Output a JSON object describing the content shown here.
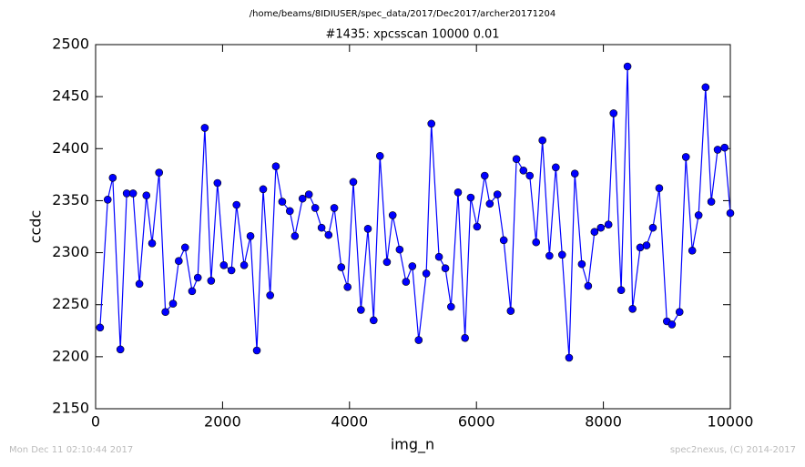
{
  "chart_data": {
    "type": "line",
    "suptitle": "/home/beams/8IDIUSER/spec_data/2017/Dec2017/archer20171204",
    "title": "#1435: xpcsscan 10000 0.01",
    "x_label": "img_n",
    "y_label": "ccdc",
    "xlim": [
      0,
      10000
    ],
    "xticks": [
      0,
      2000,
      4000,
      6000,
      8000,
      10000
    ],
    "ylim": [
      2150,
      2500
    ],
    "yticks": [
      2150,
      2200,
      2250,
      2300,
      2350,
      2400,
      2450,
      2500
    ],
    "grid": false,
    "x": [
      70,
      190,
      270,
      390,
      490,
      590,
      690,
      800,
      890,
      1000,
      1100,
      1220,
      1310,
      1410,
      1520,
      1610,
      1720,
      1820,
      1920,
      2020,
      2140,
      2220,
      2340,
      2440,
      2540,
      2640,
      2750,
      2840,
      2940,
      3060,
      3140,
      3260,
      3360,
      3460,
      3560,
      3670,
      3760,
      3870,
      3970,
      4060,
      4180,
      4290,
      4380,
      4480,
      4590,
      4680,
      4790,
      4890,
      4990,
      5090,
      5210,
      5290,
      5410,
      5510,
      5600,
      5710,
      5820,
      5910,
      6010,
      6130,
      6210,
      6330,
      6430,
      6540,
      6630,
      6740,
      6840,
      6940,
      7040,
      7150,
      7250,
      7350,
      7460,
      7550,
      7660,
      7760,
      7860,
      7960,
      8080,
      8160,
      8280,
      8380,
      8460,
      8580,
      8680,
      8780,
      8880,
      9000,
      9080,
      9200,
      9300,
      9400,
      9500,
      9610,
      9700,
      9800,
      9910,
      10000
    ],
    "series": [
      {
        "color": "#0000ff",
        "values": [
          2228,
          2351,
          2372,
          2207,
          2357,
          2357,
          2270,
          2355,
          2309,
          2377,
          2243,
          2251,
          2292,
          2305,
          2263,
          2276,
          2420,
          2273,
          2367,
          2288,
          2283,
          2346,
          2288,
          2316,
          2206,
          2361,
          2259,
          2383,
          2349,
          2340,
          2316,
          2352,
          2356,
          2343,
          2324,
          2317,
          2343,
          2286,
          2267,
          2368,
          2245,
          2323,
          2235,
          2393,
          2291,
          2336,
          2303,
          2272,
          2287,
          2216,
          2280,
          2424,
          2296,
          2285,
          2248,
          2358,
          2218,
          2353,
          2325,
          2374,
          2347,
          2356,
          2312,
          2244,
          2390,
          2379,
          2374,
          2310,
          2408,
          2297,
          2382,
          2298,
          2199,
          2376,
          2289,
          2268,
          2320,
          2324,
          2327,
          2434,
          2264,
          2479,
          2246,
          2305,
          2307,
          2324,
          2362,
          2234,
          2231,
          2243,
          2392,
          2302,
          2336,
          2459,
          2349,
          2399,
          2401,
          2338
        ]
      }
    ]
  },
  "footer": {
    "left": "Mon Dec 11 02:10:44 2017",
    "right": "spec2nexus, (C) 2014-2017"
  }
}
